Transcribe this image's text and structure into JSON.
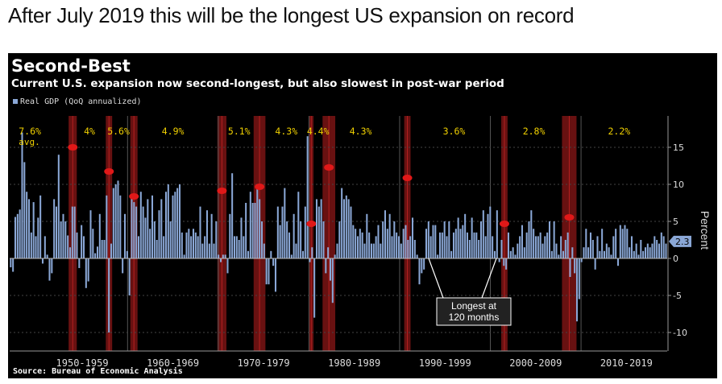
{
  "headline": "After July 2019 this will be the longest US expansion on record",
  "chart_data": {
    "type": "bar",
    "title": "Second-Best",
    "subtitle": "Current U.S. expansion now second-longest, but also slowest in post-war period",
    "legend": "Real GDP (QoQ annualized)",
    "ylabel": "Percent",
    "ylim": [
      -12.5,
      20
    ],
    "yticks": [
      15,
      10,
      5,
      0,
      -5,
      -10
    ],
    "current_value_label": "2.3",
    "decades": [
      "1950-1959",
      "1960-1969",
      "1970-1979",
      "1980-1989",
      "1990-1999",
      "2000-2009",
      "2010-2019"
    ],
    "expansion_averages": [
      {
        "label": "7.6%",
        "sub": "avg."
      },
      {
        "label": "4%"
      },
      {
        "label": "5.6%"
      },
      {
        "label": "4.9%"
      },
      {
        "label": "5.1%"
      },
      {
        "label": "4.3%"
      },
      {
        "label": "4.4%"
      },
      {
        "label": "4.3%"
      },
      {
        "label": "3.6%"
      },
      {
        "label": "2.8%"
      },
      {
        "label": "2.2%"
      }
    ],
    "recessions": [
      {
        "start": 1953.5,
        "end": 1954.4
      },
      {
        "start": 1957.6,
        "end": 1958.3
      },
      {
        "start": 1960.3,
        "end": 1961.1
      },
      {
        "start": 1969.9,
        "end": 1970.9
      },
      {
        "start": 1973.9,
        "end": 1975.2
      },
      {
        "start": 1980.0,
        "end": 1980.5
      },
      {
        "start": 1981.5,
        "end": 1982.9
      },
      {
        "start": 1990.5,
        "end": 1991.2
      },
      {
        "start": 2001.2,
        "end": 2001.9
      },
      {
        "start": 2007.9,
        "end": 2009.5
      }
    ],
    "annotation": {
      "lines": [
        "Longest at",
        "120 months"
      ],
      "target_x": 1994.8
    },
    "start_year": 1947,
    "end_year": 2019.5,
    "values": [
      -1.2,
      -1.8,
      5.6,
      6.0,
      6.6,
      17.0,
      13.0,
      9.0,
      8.0,
      3.5,
      7.6,
      3.0,
      5.5,
      8.5,
      -0.7,
      3.0,
      0.5,
      -3.0,
      -2.0,
      8.0,
      7.0,
      14.0,
      5.0,
      6.0,
      5.0,
      3.1,
      1.5,
      7.0,
      7.0,
      3.5,
      -1.3,
      4.5,
      3.0,
      -4.0,
      -3.1,
      6.5,
      4.0,
      0.7,
      1.6,
      6.0,
      2.5,
      2.5,
      8.5,
      -10.0,
      2.0,
      9.5,
      10.0,
      10.5,
      8.5,
      -2.0,
      6.0,
      1.0,
      -5.0,
      8.5,
      7.6,
      7.0,
      3.0,
      9.0,
      7.0,
      5.5,
      8.0,
      4.0,
      8.5,
      5.0,
      2.5,
      6.5,
      8.0,
      3.0,
      9.0,
      10.0,
      5.0,
      8.5,
      9.0,
      9.5,
      10.0,
      3.5,
      0.5,
      3.5,
      4.0,
      3.0,
      4.0,
      3.5,
      3.0,
      7.0,
      2.0,
      3.0,
      6.5,
      2.0,
      6.0,
      2.0,
      5.0,
      0.5,
      -0.5,
      0.5,
      0.5,
      -2.0,
      6.0,
      11.5,
      3.0,
      3.0,
      2.5,
      5.5,
      3.0,
      7.5,
      1.0,
      9.0,
      7.5,
      7.5,
      10.0,
      8.0,
      5.0,
      2.0,
      -3.5,
      -3.5,
      1.0,
      -1.0,
      -4.5,
      7.0,
      4.5,
      7.0,
      9.5,
      5.0,
      3.5,
      0.5,
      6.0,
      2.0,
      9.0,
      5.0,
      1.0,
      7.0,
      16.5,
      -0.5,
      1.5,
      -8.0,
      8.0,
      7.0,
      8.0,
      5.0,
      -2.0,
      1.5,
      -3.0,
      -6.0,
      0.5,
      2.0,
      5.0,
      9.5,
      8.0,
      8.5,
      8.0,
      7.0,
      4.5,
      4.0,
      3.0,
      4.0,
      3.5,
      2.0,
      6.0,
      3.5,
      2.0,
      2.0,
      3.0,
      4.5,
      2.0,
      5.0,
      6.5,
      4.0,
      6.0,
      3.0,
      5.0,
      3.5,
      3.0,
      2.0,
      4.0,
      4.5,
      2.5,
      3.0,
      5.5,
      2.5,
      0.5,
      -3.5,
      -2.0,
      -1.5,
      4.0,
      5.0,
      3.0,
      4.5,
      4.5,
      0.5,
      3.5,
      3.5,
      5.0,
      3.0,
      5.0,
      1.0,
      3.5,
      4.0,
      5.5,
      4.0,
      4.5,
      6.0,
      3.5,
      2.5,
      5.5,
      3.5,
      3.5,
      2.5,
      5.0,
      6.5,
      3.0,
      6.0,
      7.0,
      3.0,
      1.0,
      6.5,
      -0.5,
      2.5,
      -1.0,
      -1.5,
      3.5,
      1.0,
      1.5,
      0.5,
      2.0,
      3.0,
      4.5,
      1.5,
      3.5,
      5.0,
      6.5,
      4.0,
      3.0,
      3.0,
      3.5,
      2.0,
      3.0,
      3.5,
      5.0,
      1.0,
      5.0,
      2.0,
      0.5,
      3.0,
      1.0,
      2.5,
      3.5,
      -2.5,
      1.5,
      -2.0,
      -8.5,
      -5.5,
      -0.5,
      1.5,
      4.0,
      1.5,
      3.5,
      2.5,
      -1.5,
      3.0,
      1.0,
      4.0,
      1.0,
      2.0,
      1.5,
      0.5,
      3.0,
      4.0,
      -1.0,
      4.5,
      4.0,
      4.5,
      4.0,
      1.5,
      3.0,
      1.0,
      2.0,
      0.5,
      2.5,
      1.0,
      1.5,
      2.0,
      1.5,
      2.0,
      3.0,
      2.5,
      2.0,
      3.5,
      3.0,
      2.0
    ]
  }
}
